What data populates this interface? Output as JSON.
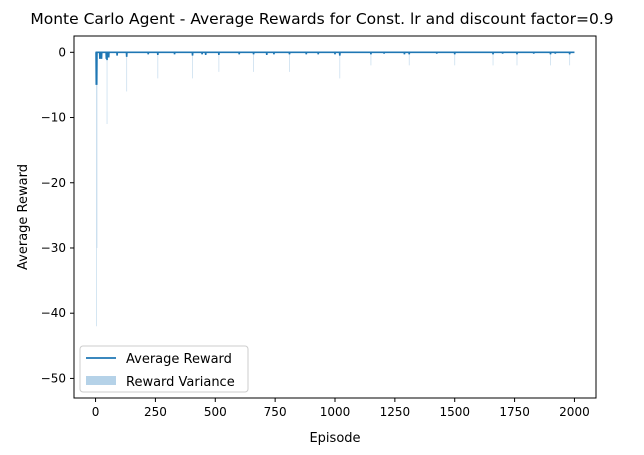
{
  "chart_data": {
    "type": "line",
    "title": "Monte Carlo Agent - Average Rewards for Const. lr and discount factor=0.9",
    "xlabel": "Episode",
    "ylabel": "Average Reward",
    "xlim": [
      -90,
      2090
    ],
    "ylim": [
      -53,
      2.5
    ],
    "xticks": [
      0,
      250,
      500,
      750,
      1000,
      1250,
      1500,
      1750,
      2000
    ],
    "xtick_labels": [
      "0",
      "250",
      "500",
      "750",
      "1000",
      "1250",
      "1500",
      "1750",
      "2000"
    ],
    "yticks": [
      0,
      -10,
      -20,
      -30,
      -40,
      -50
    ],
    "ytick_labels": [
      "0",
      "−10",
      "−20",
      "−30",
      "−40",
      "−50"
    ],
    "grid": false,
    "legend": {
      "position": "lower-left",
      "entries": [
        {
          "label": "Average Reward",
          "kind": "line",
          "color": "#1f77b4"
        },
        {
          "label": "Reward Variance",
          "kind": "band",
          "color": "#b5d2e8"
        }
      ]
    },
    "series": [
      {
        "name": "Average Reward",
        "color": "#1f77b4",
        "baseline": 0,
        "episodes": 2000,
        "dips": [
          {
            "x": 3,
            "y": -5
          },
          {
            "x": 5,
            "y": -5
          },
          {
            "x": 18,
            "y": -1
          },
          {
            "x": 25,
            "y": -1
          },
          {
            "x": 45,
            "y": -1
          },
          {
            "x": 48,
            "y": -1.2
          },
          {
            "x": 55,
            "y": -0.8
          },
          {
            "x": 90,
            "y": -0.5
          },
          {
            "x": 130,
            "y": -0.7
          },
          {
            "x": 220,
            "y": -0.3
          },
          {
            "x": 260,
            "y": -0.4
          },
          {
            "x": 330,
            "y": -0.3
          },
          {
            "x": 405,
            "y": -0.5
          },
          {
            "x": 445,
            "y": -0.3
          },
          {
            "x": 460,
            "y": -0.4
          },
          {
            "x": 515,
            "y": -0.4
          },
          {
            "x": 600,
            "y": -0.3
          },
          {
            "x": 660,
            "y": -0.3
          },
          {
            "x": 715,
            "y": -0.4
          },
          {
            "x": 745,
            "y": -0.3
          },
          {
            "x": 810,
            "y": -0.3
          },
          {
            "x": 880,
            "y": -0.3
          },
          {
            "x": 930,
            "y": -0.3
          },
          {
            "x": 1000,
            "y": -0.3
          },
          {
            "x": 1020,
            "y": -0.5
          },
          {
            "x": 1150,
            "y": -0.3
          },
          {
            "x": 1205,
            "y": -0.2
          },
          {
            "x": 1290,
            "y": -0.3
          },
          {
            "x": 1310,
            "y": -0.3
          },
          {
            "x": 1425,
            "y": -0.2
          },
          {
            "x": 1500,
            "y": -0.3
          },
          {
            "x": 1660,
            "y": -0.3
          },
          {
            "x": 1700,
            "y": -0.2
          },
          {
            "x": 1760,
            "y": -0.3
          },
          {
            "x": 1830,
            "y": -0.2
          },
          {
            "x": 1900,
            "y": -0.3
          },
          {
            "x": 1920,
            "y": -0.2
          },
          {
            "x": 1980,
            "y": -0.3
          }
        ]
      },
      {
        "name": "Reward Variance",
        "color": "#b5d2e8",
        "band_lower": [
          {
            "x": 4,
            "y": -42
          },
          {
            "x": 6,
            "y": -30
          },
          {
            "x": 48,
            "y": -11
          },
          {
            "x": 130,
            "y": -6
          },
          {
            "x": 260,
            "y": -4
          },
          {
            "x": 405,
            "y": -4
          },
          {
            "x": 515,
            "y": -3
          },
          {
            "x": 660,
            "y": -3
          },
          {
            "x": 810,
            "y": -3
          },
          {
            "x": 1020,
            "y": -4
          },
          {
            "x": 1150,
            "y": -2
          },
          {
            "x": 1310,
            "y": -2
          },
          {
            "x": 1500,
            "y": -2
          },
          {
            "x": 1660,
            "y": -2
          },
          {
            "x": 1760,
            "y": -2
          },
          {
            "x": 1900,
            "y": -2
          },
          {
            "x": 1980,
            "y": -2
          }
        ]
      }
    ]
  }
}
